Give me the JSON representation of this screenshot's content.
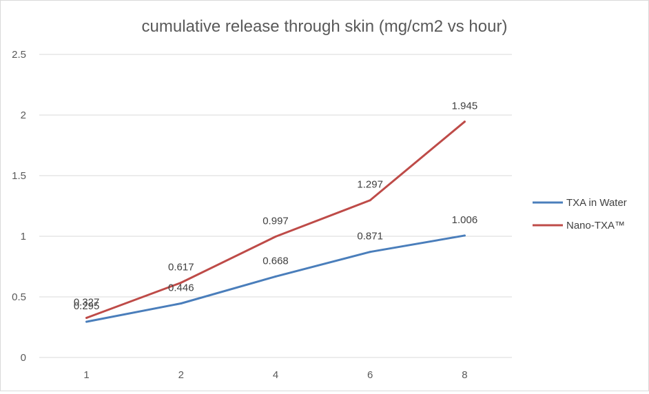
{
  "chart_data": {
    "type": "line",
    "title": "cumulative release through skin (mg/cm2 vs hour)",
    "xlabel": "",
    "ylabel": "",
    "categories": [
      "1",
      "2",
      "4",
      "6",
      "8"
    ],
    "ylim": [
      0,
      2.5
    ],
    "yticks": [
      "0",
      "0.5",
      "1",
      "1.5",
      "2",
      "2.5"
    ],
    "grid": true,
    "legend_position": "right",
    "series": [
      {
        "name": "TXA in Water",
        "color": "#4a7ebb",
        "values": [
          0.295,
          0.446,
          0.668,
          0.871,
          1.006
        ],
        "labels": [
          "0.295",
          "0.446",
          "0.668",
          "0.871",
          "1.006"
        ]
      },
      {
        "name": "Nano-TXA™",
        "color": "#be4b48",
        "values": [
          0.327,
          0.617,
          0.997,
          1.297,
          1.945
        ],
        "labels": [
          "0.327",
          "0.617",
          "0.997",
          "1.297",
          "1.945"
        ]
      }
    ]
  }
}
